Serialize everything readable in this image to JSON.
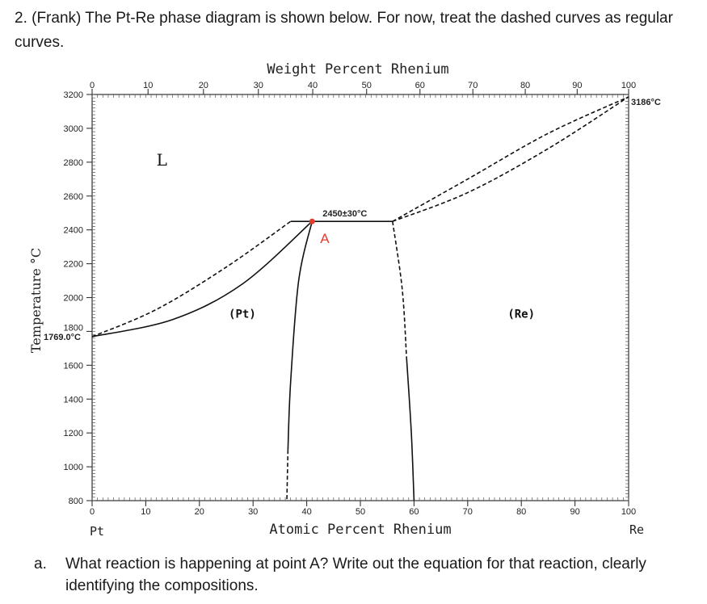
{
  "question": {
    "text": "2. (Frank) The Pt-Re phase diagram is shown below. For now, treat the dashed curves as regular curves."
  },
  "subquestion": {
    "label": "a.",
    "text": "What reaction is happening at point A? Write out the equation for that reaction, clearly identifying the compositions."
  },
  "chart_data": {
    "type": "phase-diagram",
    "title": "",
    "top_axis_label": "Weight Percent Rhenium",
    "xlabel": "Atomic Percent Rhenium",
    "ylabel": "Temperature °C",
    "xlim": [
      0,
      100
    ],
    "ylim": [
      800,
      3200
    ],
    "x_ticks": [
      "0",
      "10",
      "20",
      "30",
      "40",
      "50",
      "60",
      "70",
      "80",
      "90",
      "100"
    ],
    "top_ticks": [
      {
        "wt": 0,
        "label": "0"
      },
      {
        "wt": 10,
        "label": "10"
      },
      {
        "wt": 20,
        "label": "20"
      },
      {
        "wt": 30,
        "label": "30"
      },
      {
        "wt": 40,
        "label": "40"
      },
      {
        "wt": 50,
        "label": "50"
      },
      {
        "wt": 60,
        "label": "60"
      },
      {
        "wt": 70,
        "label": "70"
      },
      {
        "wt": 80,
        "label": "80"
      },
      {
        "wt": 90,
        "label": "90"
      },
      {
        "wt": 100,
        "label": "100"
      }
    ],
    "y_ticks": [
      "800",
      "1000",
      "1200",
      "1400",
      "1600",
      "1800",
      "2000",
      "2200",
      "2400",
      "2600",
      "2800",
      "3000",
      "3200"
    ],
    "end_labels": {
      "left": "Pt",
      "right": "Re"
    },
    "melting_points": {
      "pt": {
        "x": 0,
        "y": 1769,
        "label": "1769.0°C"
      },
      "re": {
        "x": 100,
        "y": 3186,
        "label": "3186°C"
      }
    },
    "peritectic": {
      "label": "2450±30°C",
      "T": 2450,
      "x_start": 37,
      "x_end": 56
    },
    "point_A": {
      "label": "A",
      "x": 41,
      "y": 2450,
      "color": "#e53a2e"
    },
    "region_labels": [
      {
        "text": "L",
        "x": 13,
        "y": 2780
      },
      {
        "text": "(Pt)",
        "x": 28,
        "y": 1880
      },
      {
        "text": "(Re)",
        "x": 80,
        "y": 1880
      }
    ],
    "curves": [
      {
        "name": "liquidus-pt",
        "style": "dashed",
        "points": [
          [
            0,
            1769
          ],
          [
            12,
            1930
          ],
          [
            25,
            2180
          ],
          [
            37,
            2450
          ]
        ]
      },
      {
        "name": "solidus-pt",
        "style": "solid",
        "points": [
          [
            0,
            1769
          ],
          [
            15,
            1870
          ],
          [
            28,
            2080
          ],
          [
            41,
            2450
          ]
        ]
      },
      {
        "name": "liquidus-re",
        "style": "dashed",
        "points": [
          [
            56,
            2450
          ],
          [
            70,
            2700
          ],
          [
            85,
            2970
          ],
          [
            100,
            3186
          ]
        ]
      },
      {
        "name": "solidus-re",
        "style": "dashed",
        "points": [
          [
            56,
            2450
          ],
          [
            70,
            2620
          ],
          [
            85,
            2880
          ],
          [
            100,
            3186
          ]
        ]
      },
      {
        "name": "solvus-pt",
        "style": "solid",
        "points": [
          [
            41,
            2450
          ],
          [
            38.5,
            2100
          ],
          [
            37,
            1500
          ],
          [
            36.5,
            1100
          ]
        ]
      },
      {
        "name": "solvus-pt-low",
        "style": "dashed",
        "points": [
          [
            36.5,
            1100
          ],
          [
            36.3,
            800
          ]
        ]
      },
      {
        "name": "solvus-re-upper",
        "style": "dashed",
        "points": [
          [
            56,
            2450
          ],
          [
            57.8,
            2050
          ],
          [
            58.6,
            1650
          ]
        ]
      },
      {
        "name": "solvus-re-lower",
        "style": "solid",
        "points": [
          [
            58.6,
            1650
          ],
          [
            59.5,
            1200
          ],
          [
            60,
            800
          ]
        ]
      }
    ]
  }
}
